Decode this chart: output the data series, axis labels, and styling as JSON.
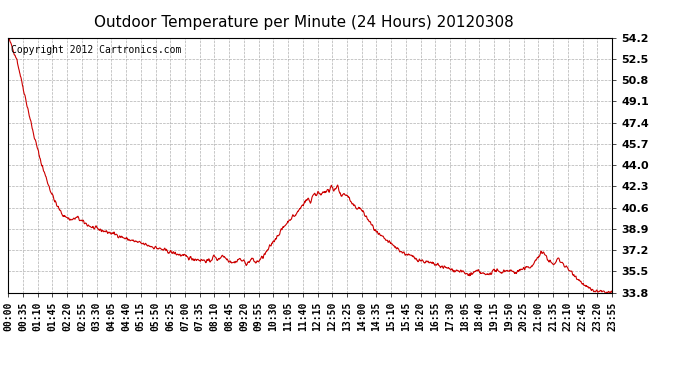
{
  "title": "Outdoor Temperature per Minute (24 Hours) 20120308",
  "copyright_text": "Copyright 2012 Cartronics.com",
  "line_color": "#cc0000",
  "background_color": "#ffffff",
  "grid_color": "#b0b0b0",
  "ylim": [
    33.8,
    54.2
  ],
  "yticks": [
    33.8,
    35.5,
    37.2,
    38.9,
    40.6,
    42.3,
    44.0,
    45.7,
    47.4,
    49.1,
    50.8,
    52.5,
    54.2
  ],
  "xtick_labels": [
    "00:00",
    "00:35",
    "01:10",
    "01:45",
    "02:20",
    "02:55",
    "03:30",
    "04:05",
    "04:40",
    "05:15",
    "05:50",
    "06:25",
    "07:00",
    "07:35",
    "08:10",
    "08:45",
    "09:20",
    "09:55",
    "10:30",
    "11:05",
    "11:40",
    "12:15",
    "12:50",
    "13:25",
    "14:00",
    "14:35",
    "15:10",
    "15:45",
    "16:20",
    "16:55",
    "17:30",
    "18:05",
    "18:40",
    "19:15",
    "19:50",
    "20:25",
    "21:00",
    "21:35",
    "22:10",
    "22:45",
    "23:20",
    "23:55"
  ],
  "title_fontsize": 11,
  "tick_fontsize": 7,
  "copyright_fontsize": 7,
  "waypoints": [
    [
      0,
      54.2
    ],
    [
      20,
      52.5
    ],
    [
      40,
      49.5
    ],
    [
      60,
      46.5
    ],
    [
      80,
      44.0
    ],
    [
      100,
      42.0
    ],
    [
      115,
      40.8
    ],
    [
      130,
      40.0
    ],
    [
      150,
      39.6
    ],
    [
      165,
      39.8
    ],
    [
      175,
      39.5
    ],
    [
      185,
      39.3
    ],
    [
      200,
      39.0
    ],
    [
      220,
      38.8
    ],
    [
      240,
      38.6
    ],
    [
      260,
      38.4
    ],
    [
      280,
      38.1
    ],
    [
      300,
      37.9
    ],
    [
      320,
      37.7
    ],
    [
      340,
      37.5
    ],
    [
      360,
      37.3
    ],
    [
      380,
      37.1
    ],
    [
      400,
      36.9
    ],
    [
      420,
      36.7
    ],
    [
      440,
      36.5
    ],
    [
      460,
      36.4
    ],
    [
      480,
      36.3
    ],
    [
      490,
      36.7
    ],
    [
      500,
      36.4
    ],
    [
      510,
      36.8
    ],
    [
      520,
      36.5
    ],
    [
      530,
      36.3
    ],
    [
      540,
      36.2
    ],
    [
      550,
      36.5
    ],
    [
      560,
      36.3
    ],
    [
      570,
      36.1
    ],
    [
      580,
      36.5
    ],
    [
      590,
      36.2
    ],
    [
      600,
      36.4
    ],
    [
      615,
      37.0
    ],
    [
      630,
      37.8
    ],
    [
      645,
      38.5
    ],
    [
      660,
      39.2
    ],
    [
      675,
      39.8
    ],
    [
      685,
      40.0
    ],
    [
      695,
      40.5
    ],
    [
      705,
      41.0
    ],
    [
      715,
      41.3
    ],
    [
      720,
      41.0
    ],
    [
      725,
      41.5
    ],
    [
      730,
      41.8
    ],
    [
      735,
      41.5
    ],
    [
      740,
      41.9
    ],
    [
      745,
      41.6
    ],
    [
      750,
      42.0
    ],
    [
      755,
      41.7
    ],
    [
      760,
      42.0
    ],
    [
      765,
      41.8
    ],
    [
      770,
      42.3
    ],
    [
      775,
      42.0
    ],
    [
      780,
      42.1
    ],
    [
      785,
      42.3
    ],
    [
      790,
      41.8
    ],
    [
      795,
      41.5
    ],
    [
      800,
      41.7
    ],
    [
      810,
      41.5
    ],
    [
      820,
      40.8
    ],
    [
      830,
      40.6
    ],
    [
      840,
      40.5
    ],
    [
      850,
      40.0
    ],
    [
      860,
      39.5
    ],
    [
      870,
      39.0
    ],
    [
      880,
      38.5
    ],
    [
      900,
      38.0
    ],
    [
      920,
      37.5
    ],
    [
      940,
      37.0
    ],
    [
      960,
      36.7
    ],
    [
      980,
      36.4
    ],
    [
      1000,
      36.2
    ],
    [
      1020,
      36.0
    ],
    [
      1040,
      35.8
    ],
    [
      1060,
      35.6
    ],
    [
      1080,
      35.5
    ],
    [
      1090,
      35.3
    ],
    [
      1100,
      35.2
    ],
    [
      1110,
      35.4
    ],
    [
      1120,
      35.5
    ],
    [
      1130,
      35.3
    ],
    [
      1140,
      35.2
    ],
    [
      1150,
      35.4
    ],
    [
      1160,
      35.6
    ],
    [
      1170,
      35.4
    ],
    [
      1180,
      35.5
    ],
    [
      1190,
      35.6
    ],
    [
      1200,
      35.5
    ],
    [
      1210,
      35.4
    ],
    [
      1220,
      35.6
    ],
    [
      1230,
      35.7
    ],
    [
      1240,
      35.8
    ],
    [
      1250,
      36.0
    ],
    [
      1260,
      36.5
    ],
    [
      1270,
      37.0
    ],
    [
      1280,
      36.8
    ],
    [
      1290,
      36.3
    ],
    [
      1300,
      36.0
    ],
    [
      1310,
      36.5
    ],
    [
      1320,
      36.2
    ],
    [
      1330,
      35.8
    ],
    [
      1340,
      35.5
    ],
    [
      1350,
      35.2
    ],
    [
      1360,
      34.8
    ],
    [
      1370,
      34.5
    ],
    [
      1380,
      34.2
    ],
    [
      1390,
      34.0
    ],
    [
      1400,
      33.9
    ],
    [
      1410,
      33.85
    ],
    [
      1420,
      33.82
    ],
    [
      1430,
      33.81
    ],
    [
      1439,
      33.8
    ]
  ]
}
